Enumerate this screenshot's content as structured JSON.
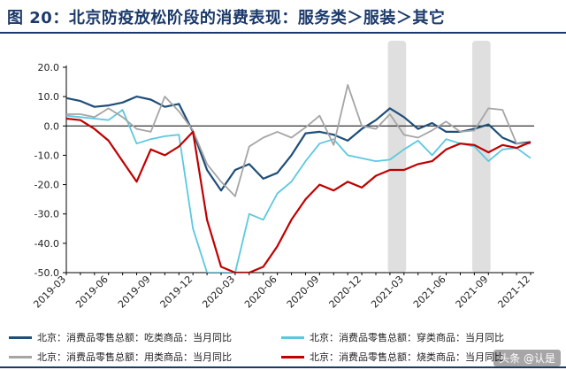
{
  "header": {
    "title": "图 20：北京防疫放松阶段的消费表现：服务类＞服装＞其它"
  },
  "watermark": "头条 @认是",
  "colors": {
    "title": "#1b3a6b",
    "shade": "#d9d9d9"
  },
  "chart_data": {
    "type": "line",
    "title": "",
    "xlabel": "",
    "ylabel": "",
    "ylim": [
      -50,
      20
    ],
    "yticks": [
      "20.0",
      "10.0",
      "0.0",
      "-10.0",
      "-20.0",
      "-30.0",
      "-40.0",
      "-50.0"
    ],
    "ytick_values": [
      20,
      10,
      0,
      -10,
      -20,
      -30,
      -40,
      -50
    ],
    "x": [
      "2019-03",
      "2019-04",
      "2019-05",
      "2019-06",
      "2019-07",
      "2019-08",
      "2019-09",
      "2019-10",
      "2019-11",
      "2019-12",
      "2020-01",
      "2020-02",
      "2020-03",
      "2020-04",
      "2020-05",
      "2020-06",
      "2020-07",
      "2020-08",
      "2020-09",
      "2020-10",
      "2020-11",
      "2020-12",
      "2021-01",
      "2021-02",
      "2021-03",
      "2021-04",
      "2021-05",
      "2021-06",
      "2021-07",
      "2021-08",
      "2021-09",
      "2021-10",
      "2021-11",
      "2021-12"
    ],
    "xtick_labels": [
      "2019-03",
      "2019-06",
      "2019-09",
      "2019-12",
      "2020-03",
      "2020-06",
      "2020-09",
      "2020-12",
      "2021-03",
      "2021-06",
      "2021-09",
      "2021-12"
    ],
    "xtick_indices": [
      0,
      3,
      6,
      9,
      12,
      15,
      18,
      21,
      24,
      27,
      30,
      33
    ],
    "grid": false,
    "legend_position": "bottom",
    "shaded_periods": [
      {
        "start": "2021-02",
        "end": "2021-03"
      },
      {
        "start": "2021-08",
        "end": "2021-09"
      }
    ],
    "series": [
      {
        "name": "北京：消费品零售总额：吃类商品：当月同比",
        "color": "#1f4e79",
        "values": [
          9.5,
          8.5,
          6.5,
          7.0,
          8.0,
          10.0,
          9.0,
          6.5,
          7.5,
          -2.0,
          -15.0,
          -22.0,
          -15.0,
          -13.0,
          -18.0,
          -16.0,
          -10.0,
          -2.5,
          -2.0,
          -3.0,
          -5.0,
          -1.0,
          2.0,
          6.0,
          3.0,
          -1.0,
          1.0,
          -2.0,
          -2.0,
          -1.0,
          0.5,
          -4.0,
          -6.0,
          -5.5
        ]
      },
      {
        "name": "北京：消费品零售总额：穿类商品：当月同比",
        "color": "#5bc8e0",
        "values": [
          3.5,
          3.0,
          2.5,
          2.0,
          5.5,
          -6.0,
          -4.5,
          -3.5,
          -3.0,
          -35.0,
          -50.0,
          -50.0,
          -50.0,
          -30.0,
          -32.0,
          -23.0,
          -19.0,
          -12.0,
          -6.0,
          -4.5,
          -10.0,
          -11.0,
          -12.0,
          -11.5,
          -8.0,
          -5.0,
          -10.0,
          -4.5,
          -6.0,
          -7.0,
          -12.0,
          -8.0,
          -7.5,
          -11.0
        ]
      },
      {
        "name": "北京：消费品零售总额：用类商品：当月同比",
        "color": "#a5a5a5",
        "values": [
          4.0,
          4.0,
          3.0,
          6.0,
          3.0,
          -1.0,
          -2.0,
          10.0,
          5.0,
          -1.5,
          -13.0,
          -19.0,
          -24.0,
          -7.0,
          -4.0,
          -2.0,
          -4.0,
          -0.5,
          3.5,
          -6.5,
          14.0,
          0.0,
          -1.0,
          4.0,
          -3.0,
          -4.0,
          -1.5,
          1.5,
          -2.0,
          -1.5,
          6.0,
          5.5,
          -6.0,
          -6.0
        ]
      },
      {
        "name": "北京：消费品零售总额：烧类商品：当月同比",
        "color": "#c00000",
        "values": [
          2.5,
          2.0,
          -1.0,
          -5.0,
          -12.0,
          -19.0,
          -8.0,
          -10.0,
          -7.0,
          -2.0,
          -32.0,
          -48.0,
          -50.0,
          -50.0,
          -48.0,
          -41.0,
          -32.0,
          -25.0,
          -20.0,
          -22.0,
          -19.0,
          -21.0,
          -17.0,
          -15.0,
          -15.0,
          -13.0,
          -12.0,
          -8.0,
          -6.0,
          -6.5,
          -9.0,
          -6.5,
          -7.5,
          -5.5
        ]
      }
    ]
  }
}
